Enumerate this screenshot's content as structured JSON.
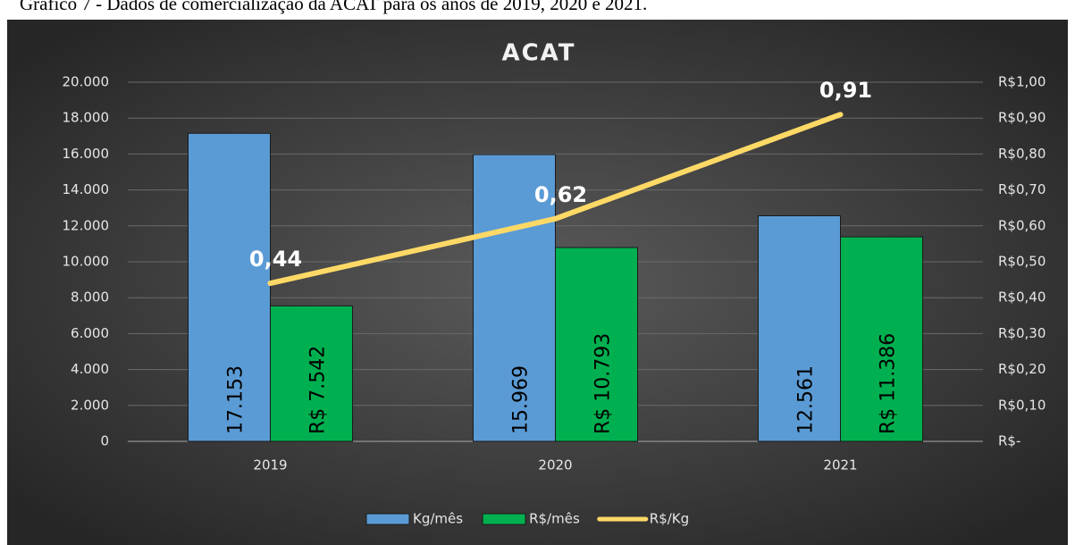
{
  "caption": "Gráfico 7 - Dados de comercialização da ACAT para os anos de 2019, 2020 e 2021.",
  "chart_data": {
    "type": "bar",
    "title": "ACAT",
    "categories": [
      "2019",
      "2020",
      "2021"
    ],
    "series": [
      {
        "name": "Kg/mês",
        "color": "#5b9bd5",
        "values": [
          17153,
          15969,
          12561
        ],
        "value_labels": [
          "17.153",
          "15.969",
          "12.561"
        ]
      },
      {
        "name": "R$/mês",
        "color": "#00b050",
        "values": [
          7542,
          10793,
          11386
        ],
        "value_labels": [
          "R$ 7.542",
          "R$ 10.793",
          "R$ 11.386"
        ]
      },
      {
        "name": "R$/Kg",
        "type": "line",
        "axis": "y2",
        "color": "#ffd966",
        "values": [
          0.44,
          0.62,
          0.91
        ],
        "value_labels": [
          "0,44",
          "0,62",
          "0,91"
        ]
      }
    ],
    "ylim": [
      0,
      20000
    ],
    "yticks": [
      0,
      {
        "value": 2000,
        "label": "2.000"
      },
      {
        "value": 4000,
        "label": "4.000"
      },
      {
        "value": 6000,
        "label": "6.000"
      },
      {
        "value": 8000,
        "label": "8.000"
      },
      {
        "value": 10000,
        "label": "10.000"
      },
      {
        "value": 12000,
        "label": "12.000"
      },
      {
        "value": 14000,
        "label": "14.000"
      },
      {
        "value": 16000,
        "label": "16.000"
      },
      {
        "value": 18000,
        "label": "18.000"
      },
      {
        "value": 20000,
        "label": "20.000"
      }
    ],
    "y2lim": [
      0,
      1
    ],
    "y2ticks": [
      {
        "value": 0,
        "label": "R$-"
      },
      {
        "value": 0.1,
        "label": "R$0,10"
      },
      {
        "value": 0.2,
        "label": "R$0,20"
      },
      {
        "value": 0.3,
        "label": "R$0,30"
      },
      {
        "value": 0.4,
        "label": "R$0,40"
      },
      {
        "value": 0.5,
        "label": "R$0,50"
      },
      {
        "value": 0.6,
        "label": "R$0,60"
      },
      {
        "value": 0.7,
        "label": "R$0,70"
      },
      {
        "value": 0.8,
        "label": "R$0,80"
      },
      {
        "value": 0.9,
        "label": "R$0,90"
      },
      {
        "value": 1,
        "label": "R$1,00"
      }
    ],
    "grid": true,
    "legend": "bottom"
  }
}
